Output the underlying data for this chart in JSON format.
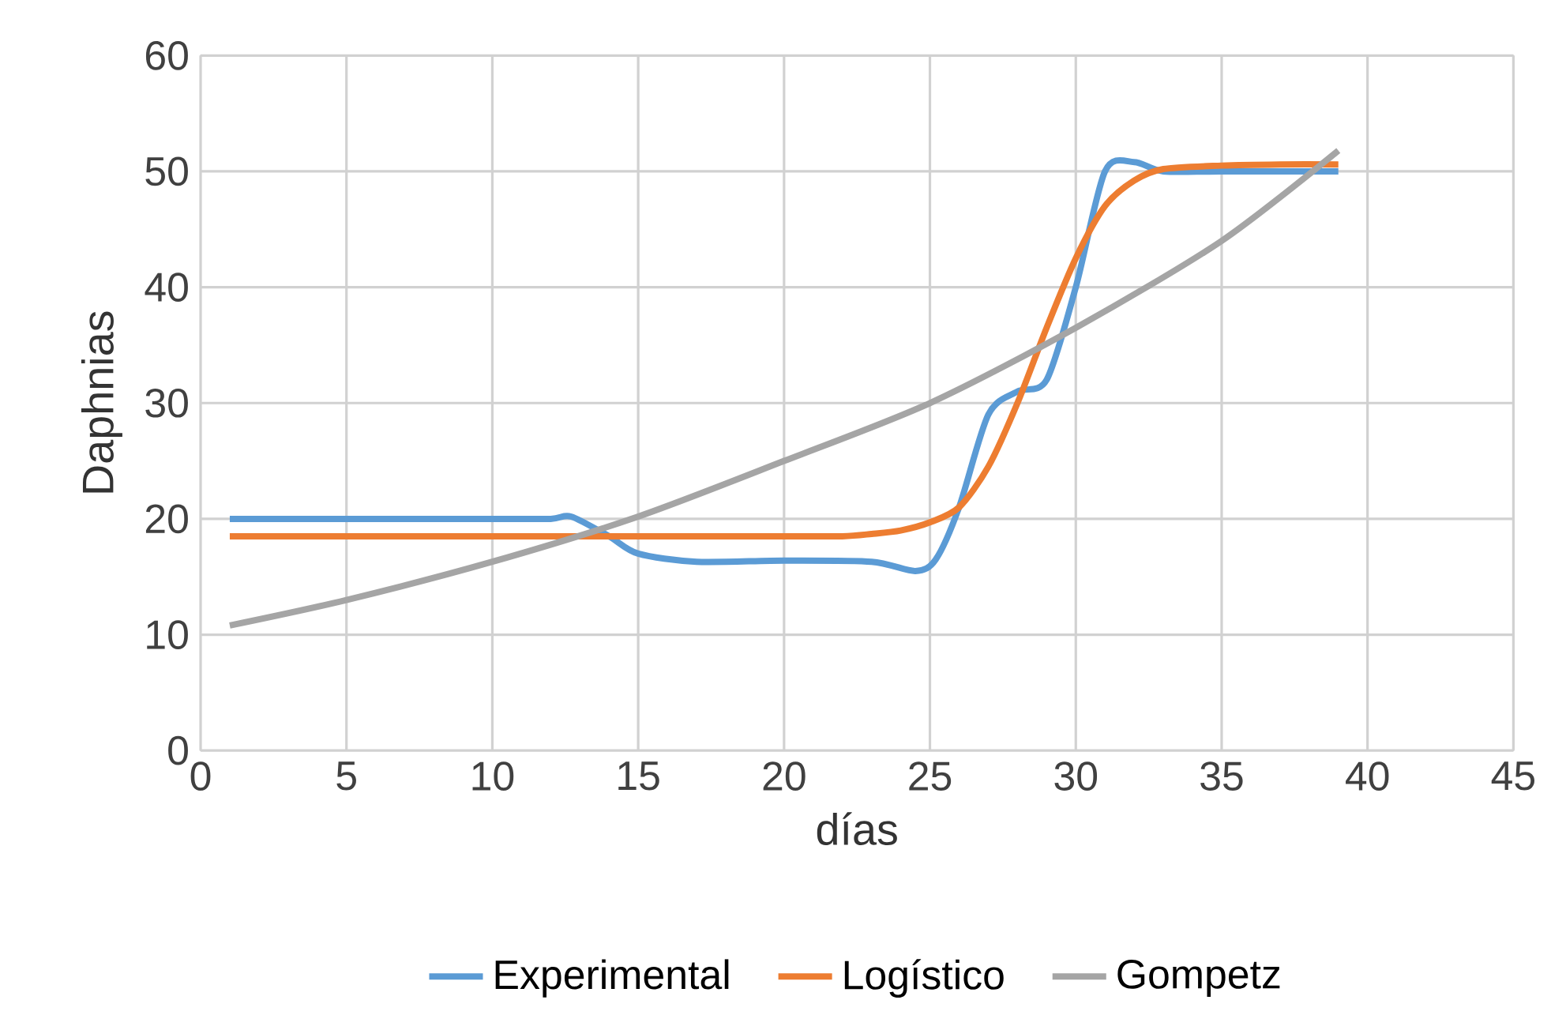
{
  "chart_data": {
    "type": "line",
    "xlabel": "días",
    "ylabel": "Daphnias",
    "xlim": [
      0,
      45
    ],
    "xticks": [
      0,
      5,
      10,
      15,
      20,
      25,
      30,
      35,
      40,
      45
    ],
    "ylim": [
      0,
      60
    ],
    "yticks": [
      0,
      10,
      20,
      30,
      40,
      50,
      60
    ],
    "grid": true,
    "legend": "bottom",
    "marker": "none",
    "series": [
      {
        "name": "Experimental",
        "color": "#5b9bd5",
        "x": [
          1,
          5,
          10,
          12,
          12.7,
          14,
          15,
          17,
          20,
          23,
          24.5,
          25.2,
          26,
          27,
          28,
          29,
          30,
          31,
          32,
          33,
          35,
          39
        ],
        "values": [
          20,
          20,
          20,
          20,
          20.2,
          18.5,
          17,
          16.3,
          16.4,
          16.3,
          15.5,
          16.5,
          21,
          29,
          31,
          32,
          40,
          50,
          50.8,
          50,
          50,
          50
        ]
      },
      {
        "name": "Logístico",
        "color": "#ed7d31",
        "x": [
          1,
          5,
          10,
          15,
          20,
          22,
          23,
          24,
          25,
          26,
          27,
          28,
          29,
          30,
          31,
          32,
          33,
          35,
          37,
          39
        ],
        "values": [
          18.5,
          18.5,
          18.5,
          18.5,
          18.5,
          18.5,
          18.7,
          19,
          19.7,
          21,
          24.5,
          30,
          36.5,
          42.5,
          47,
          49.2,
          50.2,
          50.5,
          50.6,
          50.6
        ]
      },
      {
        "name": "Gompetz",
        "color": "#a5a5a5",
        "x": [
          1,
          5,
          10,
          15,
          20,
          25,
          30,
          35,
          39
        ],
        "values": [
          10.8,
          13,
          16.3,
          20.2,
          25,
          30,
          36.5,
          44,
          51.8
        ]
      }
    ]
  }
}
